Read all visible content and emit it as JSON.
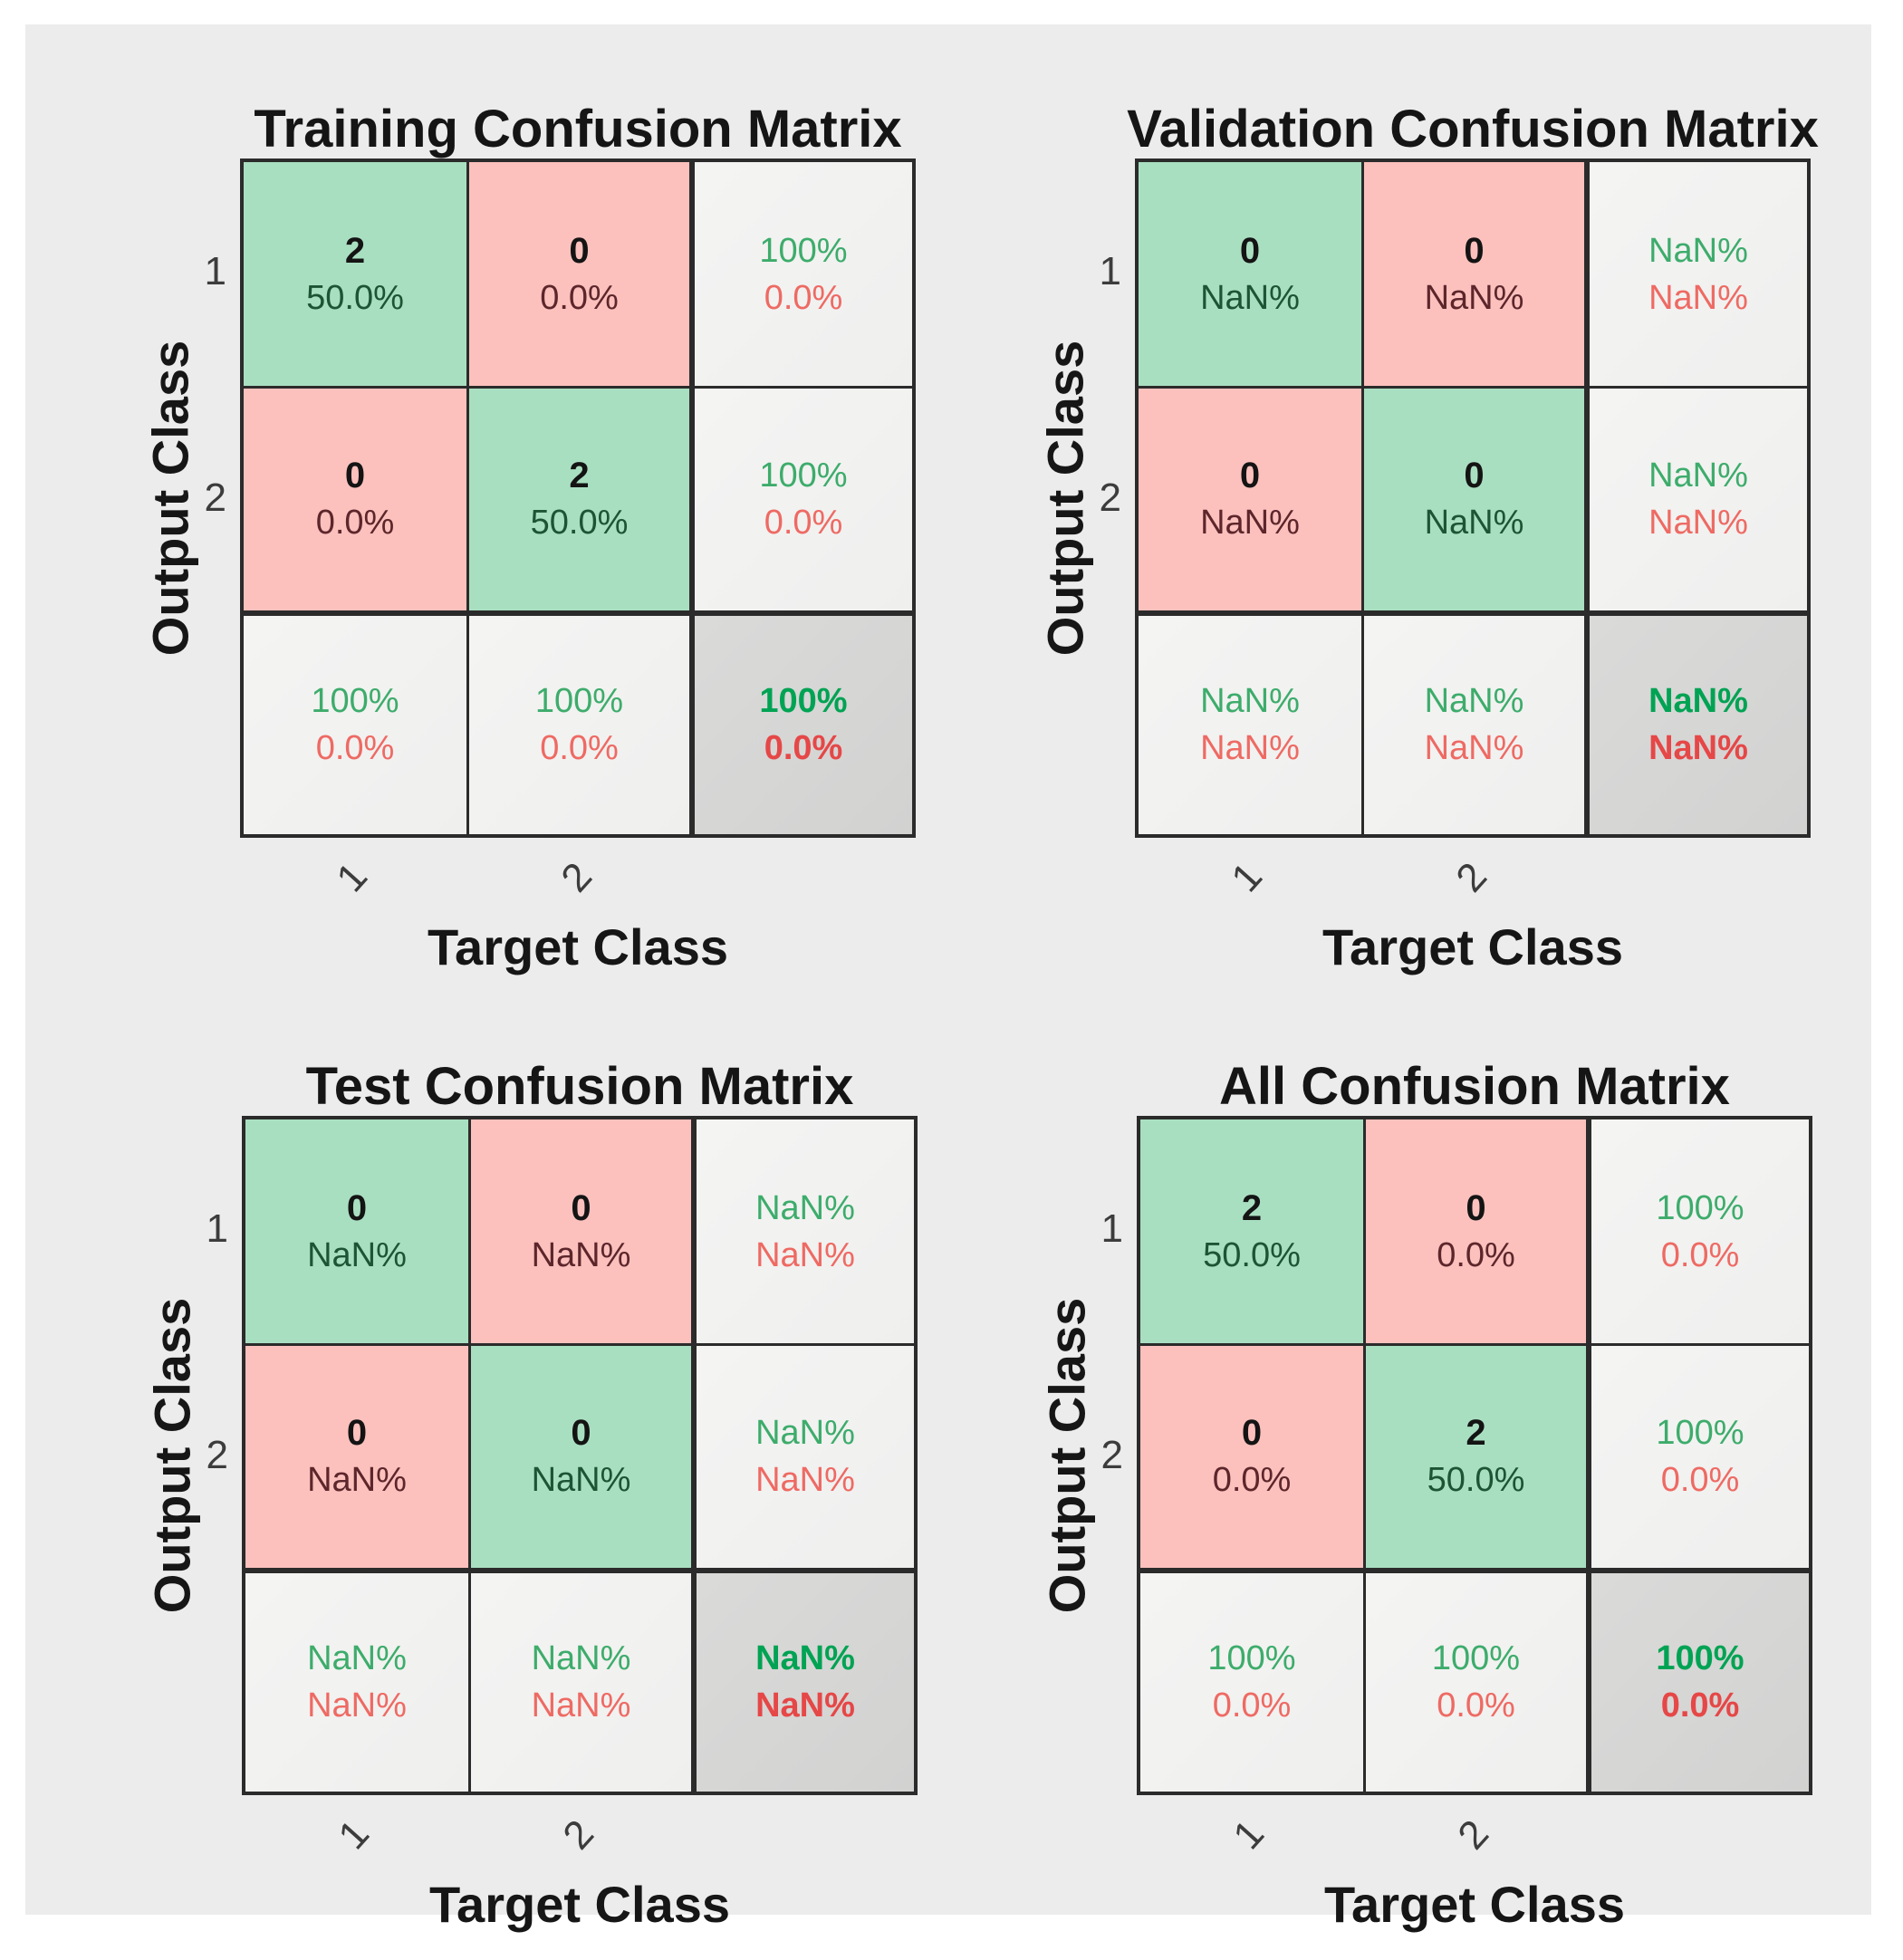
{
  "figure": {
    "axis": {
      "xlabel": "Target Class",
      "ylabel": "Output Class",
      "xticks": [
        "1",
        "2"
      ],
      "yticks": [
        "1",
        "2"
      ]
    },
    "colors": {
      "page_background": "#ffffff",
      "canvas_background": "#ececec",
      "grid_border": "#2b2b2b",
      "diagonal_cell_green": "#a9dfc1",
      "offdiagonal_cell_pink": "#fcc1bd",
      "summary_cell_gray": "#f2f2f1",
      "total_cell_gray": "#d6d6d5",
      "count_text": "#141414",
      "green_cell_pct_text": "#1d5434",
      "pink_cell_pct_text": "#5c262b",
      "summary_green_text": "#3dac6b",
      "summary_red_text": "#ee6a63",
      "total_green_text": "#00a353",
      "total_red_text": "#e64747"
    },
    "panels": [
      {
        "id": "training",
        "title": "Training Confusion Matrix",
        "cells": {
          "r1c1": {
            "value": "2",
            "pct": "50.0%"
          },
          "r1c2": {
            "value": "0",
            "pct": "0.0%"
          },
          "r1c3": {
            "line1": "100%",
            "line2": "0.0%"
          },
          "r2c1": {
            "value": "0",
            "pct": "0.0%"
          },
          "r2c2": {
            "value": "2",
            "pct": "50.0%"
          },
          "r2c3": {
            "line1": "100%",
            "line2": "0.0%"
          },
          "r3c1": {
            "line1": "100%",
            "line2": "0.0%"
          },
          "r3c2": {
            "line1": "100%",
            "line2": "0.0%"
          },
          "r3c3": {
            "line1": "100%",
            "line2": "0.0%"
          }
        }
      },
      {
        "id": "validation",
        "title": "Validation Confusion Matrix",
        "cells": {
          "r1c1": {
            "value": "0",
            "pct": "NaN%"
          },
          "r1c2": {
            "value": "0",
            "pct": "NaN%"
          },
          "r1c3": {
            "line1": "NaN%",
            "line2": "NaN%"
          },
          "r2c1": {
            "value": "0",
            "pct": "NaN%"
          },
          "r2c2": {
            "value": "0",
            "pct": "NaN%"
          },
          "r2c3": {
            "line1": "NaN%",
            "line2": "NaN%"
          },
          "r3c1": {
            "line1": "NaN%",
            "line2": "NaN%"
          },
          "r3c2": {
            "line1": "NaN%",
            "line2": "NaN%"
          },
          "r3c3": {
            "line1": "NaN%",
            "line2": "NaN%"
          }
        }
      },
      {
        "id": "test",
        "title": "Test Confusion Matrix",
        "cells": {
          "r1c1": {
            "value": "0",
            "pct": "NaN%"
          },
          "r1c2": {
            "value": "0",
            "pct": "NaN%"
          },
          "r1c3": {
            "line1": "NaN%",
            "line2": "NaN%"
          },
          "r2c1": {
            "value": "0",
            "pct": "NaN%"
          },
          "r2c2": {
            "value": "0",
            "pct": "NaN%"
          },
          "r2c3": {
            "line1": "NaN%",
            "line2": "NaN%"
          },
          "r3c1": {
            "line1": "NaN%",
            "line2": "NaN%"
          },
          "r3c2": {
            "line1": "NaN%",
            "line2": "NaN%"
          },
          "r3c3": {
            "line1": "NaN%",
            "line2": "NaN%"
          }
        }
      },
      {
        "id": "all",
        "title": "All Confusion Matrix",
        "cells": {
          "r1c1": {
            "value": "2",
            "pct": "50.0%"
          },
          "r1c2": {
            "value": "0",
            "pct": "0.0%"
          },
          "r1c3": {
            "line1": "100%",
            "line2": "0.0%"
          },
          "r2c1": {
            "value": "0",
            "pct": "0.0%"
          },
          "r2c2": {
            "value": "2",
            "pct": "50.0%"
          },
          "r2c3": {
            "line1": "100%",
            "line2": "0.0%"
          },
          "r3c1": {
            "line1": "100%",
            "line2": "0.0%"
          },
          "r3c2": {
            "line1": "100%",
            "line2": "0.0%"
          },
          "r3c3": {
            "line1": "100%",
            "line2": "0.0%"
          }
        }
      }
    ]
  },
  "chart_data": [
    {
      "type": "heatmap",
      "title": "Training Confusion Matrix",
      "xlabel": "Target Class",
      "ylabel": "Output Class",
      "classes": [
        "1",
        "2"
      ],
      "matrix_counts": [
        [
          2,
          0
        ],
        [
          0,
          2
        ]
      ],
      "matrix_pct": [
        [
          "50.0%",
          "0.0%"
        ],
        [
          "0.0%",
          "50.0%"
        ]
      ],
      "row_summary_green_red": [
        [
          "100%",
          "0.0%"
        ],
        [
          "100%",
          "0.0%"
        ]
      ],
      "col_summary_green_red": [
        [
          "100%",
          "0.0%"
        ],
        [
          "100%",
          "0.0%"
        ]
      ],
      "overall_green_red": [
        "100%",
        "0.0%"
      ]
    },
    {
      "type": "heatmap",
      "title": "Validation Confusion Matrix",
      "xlabel": "Target Class",
      "ylabel": "Output Class",
      "classes": [
        "1",
        "2"
      ],
      "matrix_counts": [
        [
          0,
          0
        ],
        [
          0,
          0
        ]
      ],
      "matrix_pct": [
        [
          "NaN%",
          "NaN%"
        ],
        [
          "NaN%",
          "NaN%"
        ]
      ],
      "row_summary_green_red": [
        [
          "NaN%",
          "NaN%"
        ],
        [
          "NaN%",
          "NaN%"
        ]
      ],
      "col_summary_green_red": [
        [
          "NaN%",
          "NaN%"
        ],
        [
          "NaN%",
          "NaN%"
        ]
      ],
      "overall_green_red": [
        "NaN%",
        "NaN%"
      ]
    },
    {
      "type": "heatmap",
      "title": "Test Confusion Matrix",
      "xlabel": "Target Class",
      "ylabel": "Output Class",
      "classes": [
        "1",
        "2"
      ],
      "matrix_counts": [
        [
          0,
          0
        ],
        [
          0,
          0
        ]
      ],
      "matrix_pct": [
        [
          "NaN%",
          "NaN%"
        ],
        [
          "NaN%",
          "NaN%"
        ]
      ],
      "row_summary_green_red": [
        [
          "NaN%",
          "NaN%"
        ],
        [
          "NaN%",
          "NaN%"
        ]
      ],
      "col_summary_green_red": [
        [
          "NaN%",
          "NaN%"
        ],
        [
          "NaN%",
          "NaN%"
        ]
      ],
      "overall_green_red": [
        "NaN%",
        "NaN%"
      ]
    },
    {
      "type": "heatmap",
      "title": "All Confusion Matrix",
      "xlabel": "Target Class",
      "ylabel": "Output Class",
      "classes": [
        "1",
        "2"
      ],
      "matrix_counts": [
        [
          2,
          0
        ],
        [
          0,
          2
        ]
      ],
      "matrix_pct": [
        [
          "50.0%",
          "0.0%"
        ],
        [
          "0.0%",
          "50.0%"
        ]
      ],
      "row_summary_green_red": [
        [
          "100%",
          "0.0%"
        ],
        [
          "100%",
          "0.0%"
        ]
      ],
      "col_summary_green_red": [
        [
          "100%",
          "0.0%"
        ],
        [
          "100%",
          "0.0%"
        ]
      ],
      "overall_green_red": [
        "100%",
        "0.0%"
      ]
    }
  ]
}
